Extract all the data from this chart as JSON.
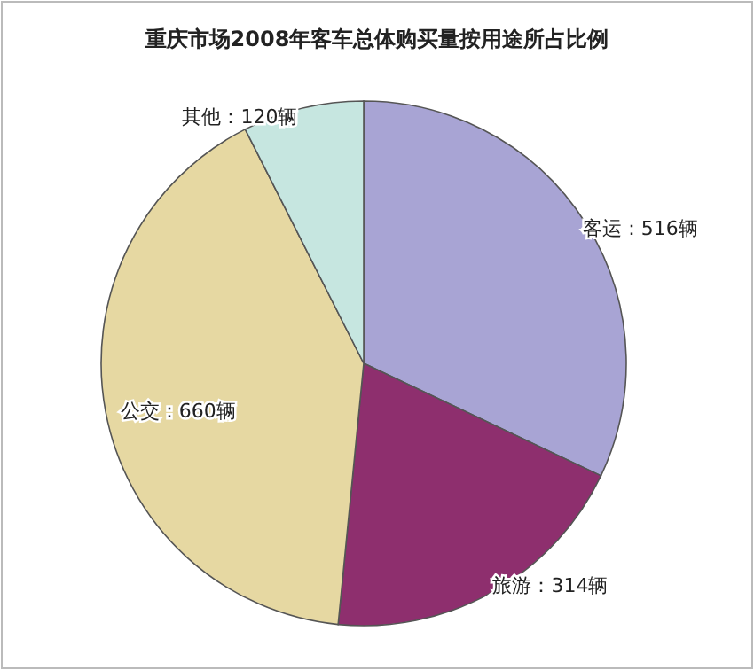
{
  "chart_data": {
    "type": "pie",
    "title": "重庆市场2008年客车总体购买量按用途所占比例",
    "categories": [
      "客运",
      "旅游",
      "公交",
      "其他"
    ],
    "values": [
      516,
      314,
      660,
      120
    ],
    "value_labels": [
      "516辆",
      "314辆",
      "660辆",
      "120辆"
    ],
    "colors": [
      "#a8a4d4",
      "#8e2f6e",
      "#e6d8a2",
      "#c6e6e0"
    ]
  }
}
